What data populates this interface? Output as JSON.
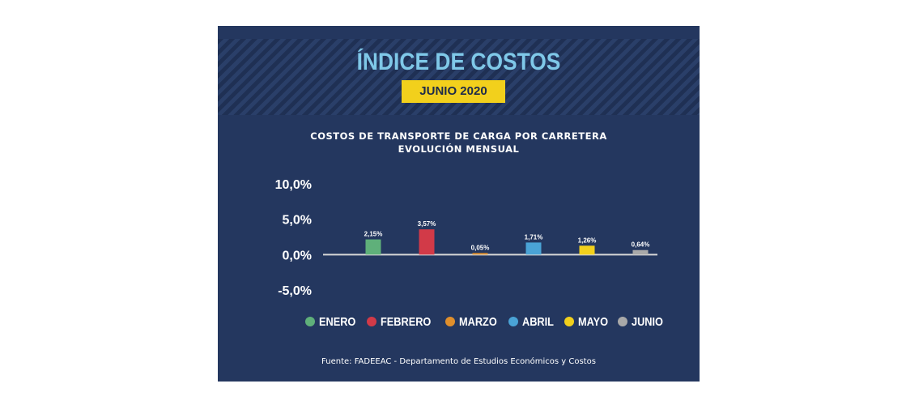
{
  "header": {
    "title": "ÍNDICE DE COSTOS",
    "period": "JUNIO 2020"
  },
  "chart_data": {
    "type": "bar",
    "title": "COSTOS DE TRANSPORTE DE CARGA POR CARRETERA",
    "subtitle": "EVOLUCIÓN MENSUAL",
    "categories": [
      "ENERO",
      "FEBRERO",
      "MARZO",
      "ABRIL",
      "MAYO",
      "JUNIO"
    ],
    "values": [
      2.15,
      3.57,
      0.05,
      1.71,
      1.26,
      0.64
    ],
    "value_labels": [
      "2,15%",
      "3,57%",
      "0,05%",
      "1,71%",
      "1,26%",
      "0,64%"
    ],
    "colors": [
      "#5fb07a",
      "#d23a48",
      "#e08f2c",
      "#4aa3d6",
      "#f2d01c",
      "#a9a9a9"
    ],
    "ylim": [
      -5,
      10
    ],
    "yticks": [
      10,
      5,
      0,
      -5
    ],
    "ytick_labels": [
      "10,0%",
      "5,0%",
      "0,0%",
      "-5,0%"
    ],
    "xlabel": "",
    "ylabel": "",
    "grid": false,
    "legend": "bottom"
  },
  "footer": {
    "source": "Fuente: FADEEAC - Departamento de Estudios Económicos y Costos"
  }
}
